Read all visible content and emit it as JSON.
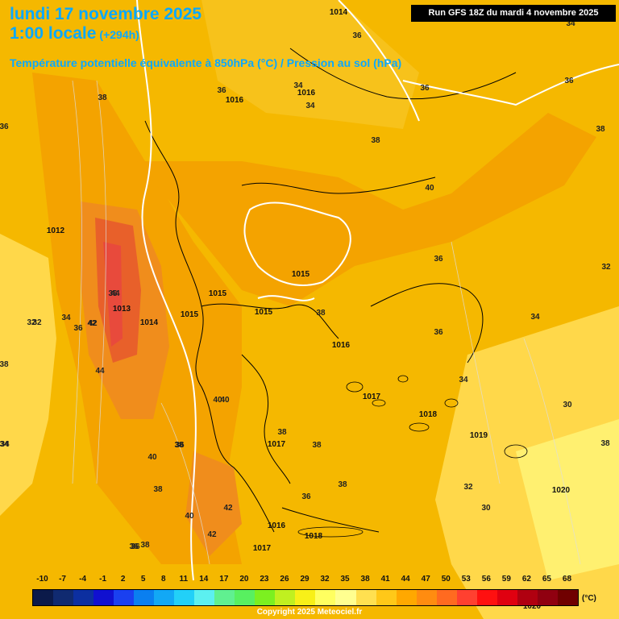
{
  "header": {
    "title_line1": "lundi 17 novembre 2025",
    "title_line2": "1:00 locale",
    "title_hours": "(+294h)",
    "subtitle": "Température potentielle équivalente à 850hPa (°C) / Pression au sol (hPa)",
    "run_label": "Run GFS 18Z du mardi 4 novembre 2025"
  },
  "colors": {
    "background": "#f5b800",
    "title": "#0aa8ff",
    "band_light": "#ffd84a",
    "band_mid": "#f7c21b",
    "band_orange": "#f4a300",
    "band_dark_orange": "#f08d1c",
    "band_red_orange": "#e8602a",
    "isobar": "#ffffff",
    "coastline": "#000000"
  },
  "theta_labels": [
    "38",
    "36",
    "36",
    "36",
    "34",
    "34",
    "34",
    "36",
    "38",
    "38",
    "36",
    "36",
    "34",
    "38",
    "40",
    "36",
    "32",
    "34",
    "36",
    "34",
    "32",
    "34",
    "36",
    "38",
    "42",
    "44",
    "44",
    "36",
    "40",
    "38",
    "38",
    "40",
    "38",
    "36",
    "38",
    "38",
    "40",
    "42",
    "42",
    "40",
    "38",
    "36",
    "32",
    "30",
    "30",
    "34",
    "38",
    "36",
    "32",
    "42"
  ],
  "pressure_labels": [
    "1014",
    "1016",
    "1016",
    "1012",
    "1015",
    "1015",
    "1015",
    "1015",
    "1013",
    "1014",
    "1016",
    "1017",
    "1018",
    "1017",
    "1019",
    "1016",
    "1018",
    "1017",
    "1020",
    "1020"
  ],
  "scale": {
    "ticks": [
      "-10",
      "-7",
      "-4",
      "-1",
      "2",
      "5",
      "8",
      "11",
      "14",
      "17",
      "20",
      "23",
      "26",
      "29",
      "32",
      "35",
      "38",
      "41",
      "44",
      "47",
      "50",
      "53",
      "56",
      "59",
      "62",
      "65",
      "68"
    ],
    "colors": [
      "#0b1a4a",
      "#102a70",
      "#0c2fa0",
      "#1010d0",
      "#1a40f0",
      "#0a7ff0",
      "#12a8f5",
      "#22d0f8",
      "#5cf0f0",
      "#60f090",
      "#58f060",
      "#7cf020",
      "#c0f020",
      "#f8f018",
      "#ffff60",
      "#ffff90",
      "#ffe050",
      "#ffc818",
      "#ffa800",
      "#ff8c10",
      "#ff6a20",
      "#ff4030",
      "#ff1010",
      "#e00010",
      "#b00010",
      "#900010",
      "#700000"
    ],
    "unit": "(°C)"
  },
  "copyright": "Copyright 2025 Meteociel.fr"
}
